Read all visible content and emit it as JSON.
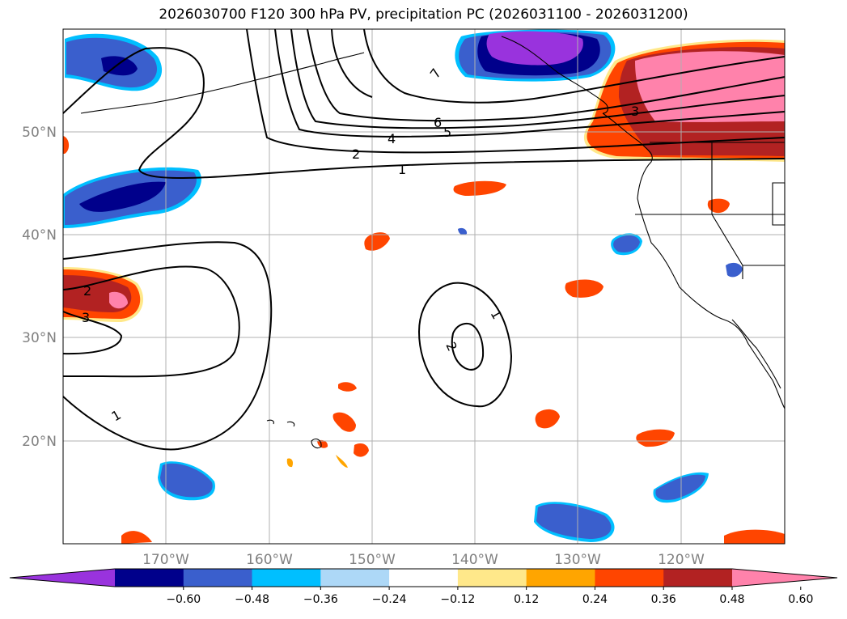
{
  "title": "2026030700 F120 300 hPa PV, precipitation PC (2026031100 - 2026031200)",
  "latitude_labels": [
    "50°N",
    "40°N",
    "30°N",
    "20°N"
  ],
  "longitude_labels": [
    "170°W",
    "160°W",
    "150°W",
    "140°W",
    "130°W",
    "120°W"
  ],
  "contour_labels": [
    "7",
    "6",
    "5",
    "4",
    "2",
    "1",
    "3",
    "2",
    "3",
    "1",
    "1",
    "2"
  ],
  "colorbar": {
    "ticks": [
      "−0.60",
      "−0.48",
      "−0.36",
      "−0.24",
      "−0.12",
      "0.12",
      "0.24",
      "0.36",
      "0.48",
      "0.60"
    ],
    "colors": [
      "#9933dd",
      "#00008b",
      "#3a5fcd",
      "#00bfff",
      "#add8f7",
      "#ffffff",
      "#ffe88a",
      "#ffa500",
      "#ff4500",
      "#b22222",
      "#ff82ab"
    ]
  },
  "colors": {
    "grid": "#b0b0b0",
    "axis_label": "#808080",
    "contour": "#000000"
  }
}
